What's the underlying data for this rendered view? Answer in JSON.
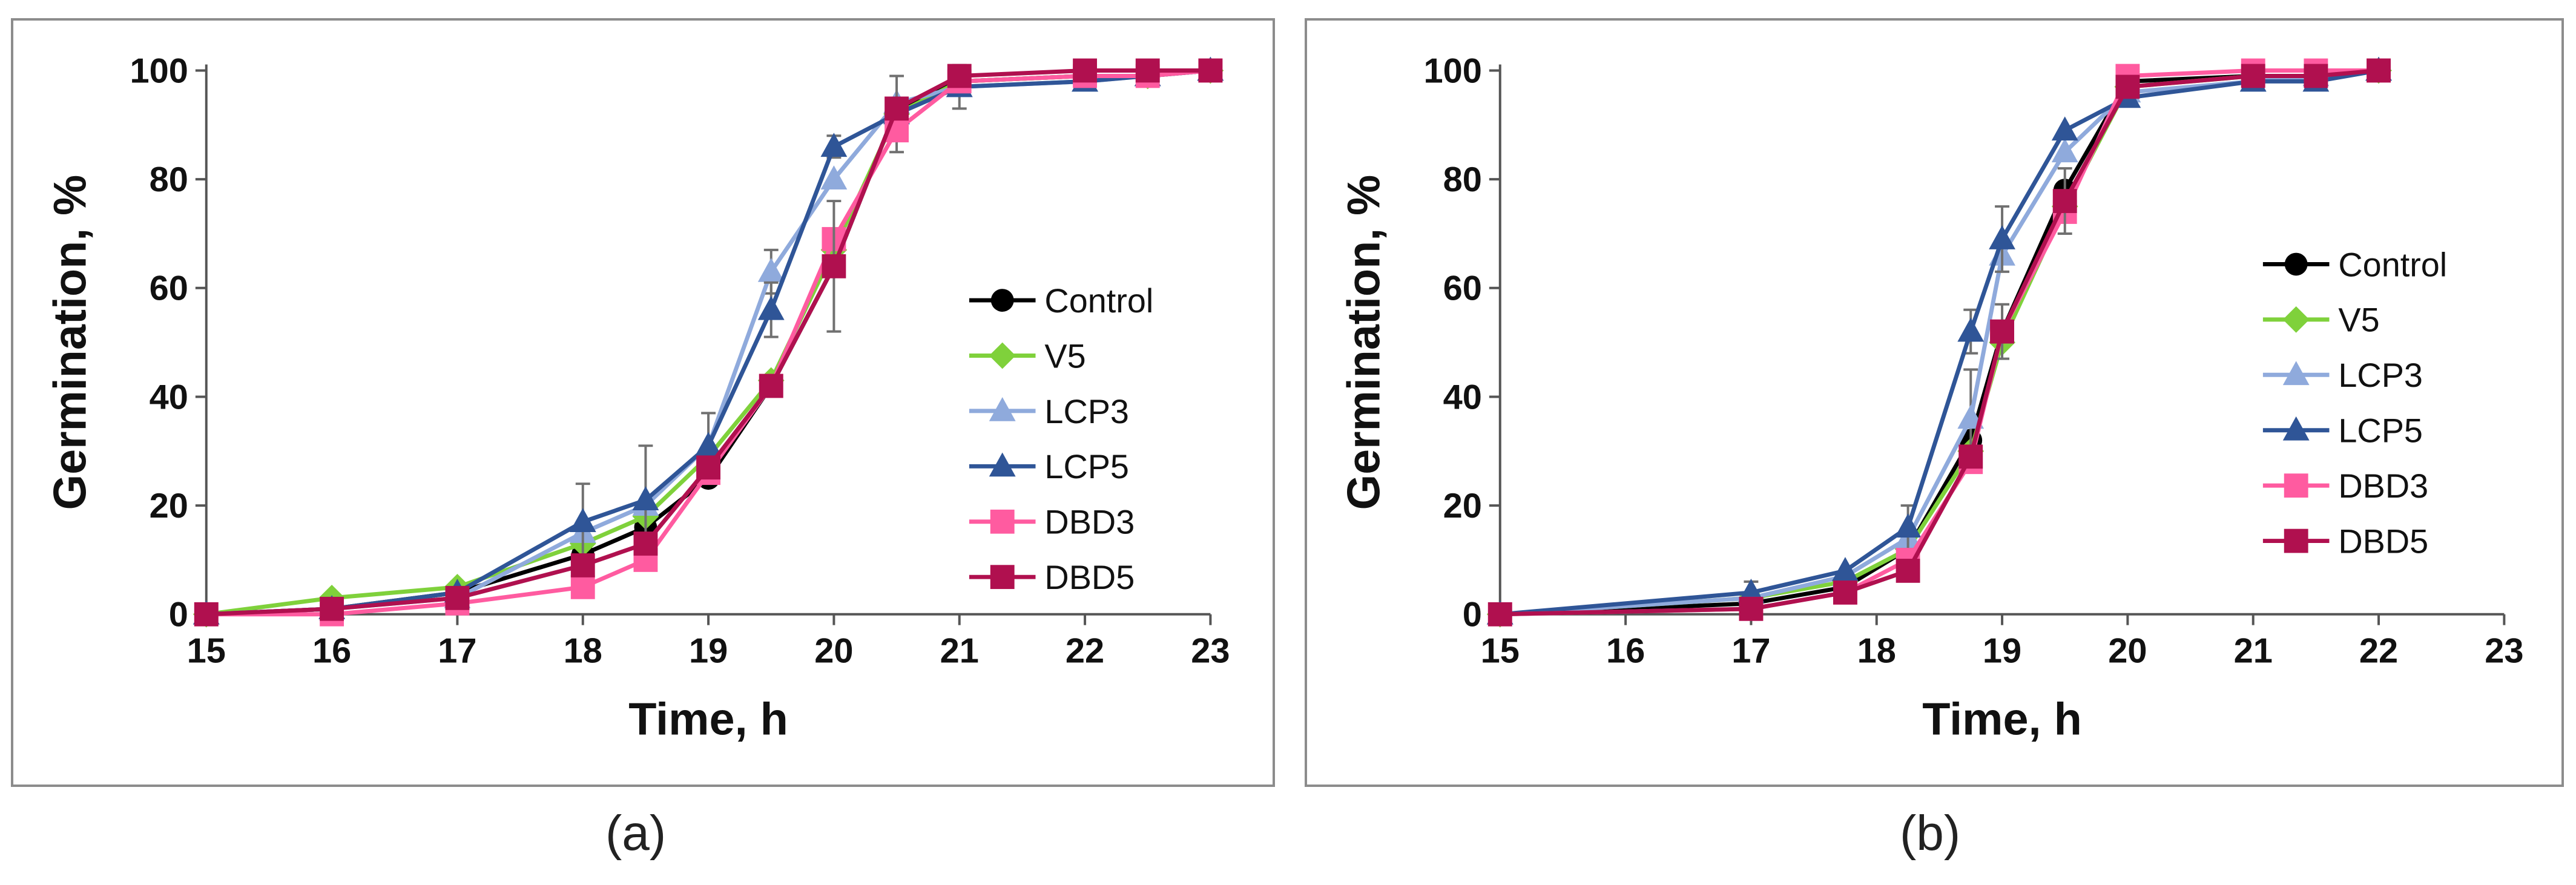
{
  "chart_data": [
    {
      "type": "line",
      "panel_label": "(a)",
      "xlabel": "Time, h",
      "ylabel": "Germination, %",
      "xlim": [
        15,
        23
      ],
      "ylim": [
        0,
        100
      ],
      "xticks": [
        15,
        16,
        17,
        18,
        19,
        20,
        21,
        22,
        23
      ],
      "yticks": [
        0,
        20,
        40,
        60,
        80,
        100
      ],
      "legend_position": "right",
      "series": [
        {
          "name": "Control",
          "color": "#000000",
          "marker": "circle",
          "x": [
            15,
            16,
            17,
            18,
            18.5,
            19,
            19.5,
            20,
            20.5,
            21,
            22,
            22.5,
            23
          ],
          "y": [
            0,
            1,
            4,
            11,
            16,
            25,
            42,
            64,
            93,
            98,
            99,
            99,
            100
          ],
          "err": [
            0,
            0,
            0,
            0,
            0,
            0,
            0,
            0,
            0,
            0,
            0,
            0,
            0
          ]
        },
        {
          "name": "V5",
          "color": "#7fd13b",
          "marker": "diamond",
          "x": [
            15,
            16,
            17,
            18,
            18.5,
            19,
            19.5,
            20,
            20.5,
            21,
            22,
            22.5,
            23
          ],
          "y": [
            0,
            3,
            5,
            13,
            18,
            29,
            43,
            67,
            92,
            98,
            99,
            99,
            100
          ],
          "err": [
            0,
            0,
            0,
            0,
            0,
            0,
            0,
            0,
            0,
            0,
            0,
            0,
            0
          ]
        },
        {
          "name": "LCP3",
          "color": "#8faadc",
          "marker": "triangle",
          "x": [
            15,
            16,
            17,
            18,
            18.5,
            19,
            19.5,
            20,
            20.5,
            21,
            22,
            22.5,
            23
          ],
          "y": [
            0,
            1,
            3,
            15,
            20,
            31,
            63,
            80,
            94,
            97,
            98,
            99,
            100
          ],
          "err": [
            0,
            0,
            0,
            0,
            0,
            0,
            4,
            0,
            0,
            0,
            0,
            0,
            0
          ]
        },
        {
          "name": "LCP5",
          "color": "#2f5597",
          "marker": "triangle",
          "x": [
            15,
            16,
            17,
            18,
            18.5,
            19,
            19.5,
            20,
            20.5,
            21,
            22,
            22.5,
            23
          ],
          "y": [
            0,
            1,
            4,
            17,
            21,
            31,
            56,
            86,
            92,
            97,
            98,
            99,
            100
          ],
          "err": [
            0,
            0,
            0,
            7,
            10,
            6,
            5,
            2,
            7,
            4,
            0,
            0,
            0
          ]
        },
        {
          "name": "DBD3",
          "color": "#ff5ba0",
          "marker": "square",
          "x": [
            15,
            16,
            17,
            18,
            18.5,
            19,
            19.5,
            20,
            20.5,
            21,
            22,
            22.5,
            23
          ],
          "y": [
            0,
            0,
            2,
            5,
            10,
            26,
            42,
            69,
            89,
            98,
            99,
            99,
            100
          ],
          "err": [
            0,
            0,
            0,
            0,
            0,
            0,
            0,
            0,
            0,
            0,
            0,
            0,
            0
          ]
        },
        {
          "name": "DBD5",
          "color": "#b0104f",
          "marker": "square",
          "x": [
            15,
            16,
            17,
            18,
            18.5,
            19,
            19.5,
            20,
            20.5,
            21,
            22,
            22.5,
            23
          ],
          "y": [
            0,
            1,
            3,
            9,
            13,
            27,
            42,
            64,
            93,
            99,
            100,
            100,
            100
          ],
          "err": [
            0,
            0,
            0,
            0,
            0,
            0,
            0,
            12,
            0,
            0,
            0,
            0,
            0
          ]
        }
      ]
    },
    {
      "type": "line",
      "panel_label": "(b)",
      "xlabel": "Time, h",
      "ylabel": "Germination, %",
      "xlim": [
        15,
        23
      ],
      "ylim": [
        0,
        100
      ],
      "xticks": [
        15,
        16,
        17,
        18,
        19,
        20,
        21,
        22,
        23
      ],
      "yticks": [
        0,
        20,
        40,
        60,
        80,
        100
      ],
      "legend_position": "right",
      "series": [
        {
          "name": "Control",
          "color": "#000000",
          "marker": "circle",
          "x": [
            15,
            17,
            17.75,
            18.25,
            18.75,
            19,
            19.5,
            20,
            21,
            21.5,
            22
          ],
          "y": [
            0,
            2,
            5,
            12,
            32,
            52,
            78,
            98,
            99,
            99,
            100
          ],
          "err": [
            0,
            0,
            0,
            0,
            0,
            0,
            0,
            0,
            0,
            0,
            0
          ]
        },
        {
          "name": "V5",
          "color": "#7fd13b",
          "marker": "diamond",
          "x": [
            15,
            17,
            17.75,
            18.25,
            18.75,
            19,
            19.5,
            20,
            21,
            21.5,
            22
          ],
          "y": [
            0,
            3,
            6,
            12,
            30,
            50,
            75,
            97,
            99,
            99,
            100
          ],
          "err": [
            0,
            0,
            0,
            0,
            0,
            0,
            0,
            0,
            0,
            0,
            0
          ]
        },
        {
          "name": "LCP3",
          "color": "#8faadc",
          "marker": "triangle",
          "x": [
            15,
            17,
            17.75,
            18.25,
            18.75,
            19,
            19.5,
            20,
            21,
            21.5,
            22
          ],
          "y": [
            0,
            3,
            7,
            14,
            36,
            66,
            85,
            96,
            98,
            99,
            100
          ],
          "err": [
            0,
            0,
            0,
            0,
            9,
            0,
            0,
            0,
            0,
            0,
            0
          ]
        },
        {
          "name": "LCP5",
          "color": "#2f5597",
          "marker": "triangle",
          "x": [
            15,
            17,
            17.75,
            18.25,
            18.75,
            19,
            19.5,
            20,
            21,
            21.5,
            22
          ],
          "y": [
            0,
            4,
            8,
            16,
            52,
            69,
            89,
            95,
            98,
            98,
            100
          ],
          "err": [
            0,
            2,
            0,
            4,
            4,
            6,
            0,
            0,
            0,
            0,
            0
          ]
        },
        {
          "name": "DBD3",
          "color": "#ff5ba0",
          "marker": "square",
          "x": [
            15,
            17,
            17.75,
            18.25,
            18.75,
            19,
            19.5,
            20,
            21,
            21.5,
            22
          ],
          "y": [
            0,
            1,
            4,
            10,
            28,
            52,
            74,
            99,
            100,
            100,
            100
          ],
          "err": [
            0,
            0,
            0,
            0,
            0,
            0,
            0,
            0,
            0,
            0,
            0
          ]
        },
        {
          "name": "DBD5",
          "color": "#b0104f",
          "marker": "square",
          "x": [
            15,
            17,
            17.75,
            18.25,
            18.75,
            19,
            19.5,
            20,
            21,
            21.5,
            22
          ],
          "y": [
            0,
            1,
            4,
            8,
            29,
            52,
            76,
            97,
            99,
            99,
            100
          ],
          "err": [
            0,
            0,
            0,
            0,
            0,
            5,
            6,
            0,
            0,
            0,
            0
          ]
        }
      ]
    }
  ]
}
